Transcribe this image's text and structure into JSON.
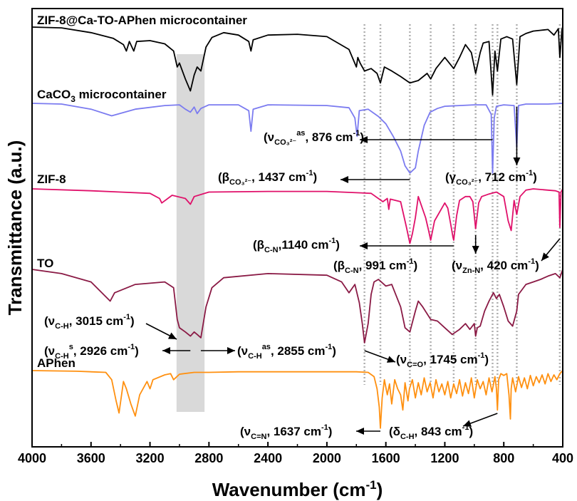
{
  "chart_data": {
    "type": "line",
    "xlabel": "Wavenumber (cm",
    "xlabel_sup": "-1",
    "xlabel_close": ")",
    "ylabel": "Transmittance (a.u.)",
    "xlim": [
      4000,
      400
    ],
    "x_reversed": true,
    "xticks": [
      4000,
      3600,
      3200,
      2800,
      2400,
      2000,
      1600,
      1200,
      800,
      400
    ],
    "grid": false,
    "shaded_band": [
      3020,
      2830
    ],
    "reference_lines": [
      1745,
      1637,
      1437,
      1296,
      1140,
      991,
      876,
      843,
      712,
      420
    ],
    "series": [
      {
        "name": "ZIF-8@Ca-TO-APhen microcontainer",
        "color": "#000000",
        "x": [
          4000,
          3800,
          3600,
          3450,
          3380,
          3360,
          3340,
          3310,
          3290,
          3200,
          3100,
          3040,
          3015,
          3000,
          2960,
          2926,
          2900,
          2880,
          2855,
          2820,
          2780,
          2700,
          2600,
          2530,
          2515,
          2500,
          2400,
          2200,
          2000,
          1850,
          1800,
          1790,
          1775,
          1745,
          1700,
          1660,
          1637,
          1610,
          1560,
          1500,
          1437,
          1380,
          1320,
          1296,
          1260,
          1200,
          1140,
          1100,
          1060,
          1020,
          991,
          960,
          940,
          900,
          876,
          860,
          843,
          820,
          780,
          740,
          712,
          690,
          650,
          600,
          550,
          500,
          460,
          430,
          420,
          405,
          400
        ],
        "y": [
          1.0,
          0.99,
          0.93,
          0.86,
          0.78,
          0.7,
          0.82,
          0.7,
          0.82,
          0.83,
          0.79,
          0.7,
          0.5,
          0.55,
          0.35,
          0.2,
          0.4,
          0.5,
          0.45,
          0.75,
          0.87,
          0.93,
          0.9,
          0.82,
          0.7,
          0.84,
          0.9,
          0.91,
          0.88,
          0.72,
          0.5,
          0.62,
          0.55,
          0.45,
          0.48,
          0.42,
          0.3,
          0.5,
          0.45,
          0.38,
          0.3,
          0.33,
          0.42,
          0.35,
          0.48,
          0.62,
          0.48,
          0.62,
          0.78,
          0.68,
          0.42,
          0.68,
          0.8,
          0.82,
          0.15,
          0.7,
          0.45,
          0.85,
          0.88,
          0.85,
          0.28,
          0.88,
          0.92,
          0.95,
          0.96,
          0.97,
          0.9,
          0.98,
          0.62,
          0.98,
          1.0
        ]
      },
      {
        "name": "CaCO3 microcontainer",
        "name_parts": [
          "CaCO",
          "3",
          " microcontainer"
        ],
        "color": "#7b7bf0",
        "x": [
          4000,
          3800,
          3600,
          3460,
          3300,
          3100,
          3000,
          2960,
          2926,
          2900,
          2880,
          2855,
          2800,
          2600,
          2530,
          2515,
          2500,
          2400,
          2000,
          1850,
          1810,
          1795,
          1780,
          1720,
          1650,
          1600,
          1550,
          1500,
          1470,
          1437,
          1400,
          1380,
          1340,
          1300,
          1250,
          1200,
          1100,
          1000,
          920,
          885,
          876,
          865,
          850,
          800,
          730,
          712,
          700,
          650,
          500,
          400
        ],
        "y": [
          1.0,
          0.99,
          0.92,
          0.83,
          0.92,
          0.97,
          0.98,
          0.92,
          0.88,
          0.95,
          0.86,
          0.93,
          0.98,
          0.98,
          0.9,
          0.62,
          0.92,
          0.98,
          0.97,
          0.94,
          0.8,
          0.55,
          0.9,
          0.92,
          0.82,
          0.72,
          0.55,
          0.35,
          0.15,
          0.05,
          0.12,
          0.35,
          0.7,
          0.88,
          0.93,
          0.96,
          0.97,
          0.98,
          0.98,
          0.85,
          0.05,
          0.8,
          0.96,
          0.98,
          0.97,
          0.4,
          0.97,
          0.99,
          0.99,
          1.0
        ]
      },
      {
        "name": "ZIF-8",
        "color": "#e0106a",
        "x": [
          4000,
          3600,
          3400,
          3200,
          3135,
          3120,
          3050,
          2960,
          2926,
          2900,
          2800,
          2400,
          2000,
          1700,
          1620,
          1590,
          1580,
          1570,
          1500,
          1460,
          1437,
          1420,
          1400,
          1380,
          1330,
          1310,
          1296,
          1270,
          1200,
          1180,
          1160,
          1145,
          1140,
          1120,
          1100,
          1060,
          1030,
          1010,
          991,
          970,
          950,
          900,
          850,
          800,
          770,
          750,
          730,
          712,
          690,
          650,
          600,
          500,
          450,
          425,
          420,
          412,
          400
        ],
        "y": [
          1.0,
          0.97,
          0.95,
          0.93,
          0.85,
          0.78,
          0.9,
          0.85,
          0.76,
          0.88,
          0.95,
          0.96,
          0.96,
          0.93,
          0.8,
          0.85,
          0.68,
          0.84,
          0.8,
          0.4,
          0.15,
          0.3,
          0.55,
          0.88,
          0.55,
          0.35,
          0.2,
          0.5,
          0.78,
          0.7,
          0.45,
          0.25,
          0.2,
          0.58,
          0.82,
          0.88,
          0.88,
          0.8,
          0.38,
          0.78,
          0.88,
          0.92,
          0.95,
          0.88,
          0.5,
          0.35,
          0.82,
          0.6,
          0.88,
          0.98,
          1.0,
          0.98,
          0.97,
          0.95,
          0.4,
          0.95,
          1.0
        ]
      },
      {
        "name": "TO",
        "color": "#8a1a45",
        "x": [
          4000,
          3800,
          3600,
          3470,
          3440,
          3300,
          3100,
          3040,
          3015,
          3000,
          2960,
          2926,
          2900,
          2880,
          2855,
          2820,
          2780,
          2700,
          2400,
          2000,
          1900,
          1850,
          1810,
          1780,
          1760,
          1745,
          1720,
          1700,
          1680,
          1650,
          1600,
          1560,
          1500,
          1470,
          1437,
          1400,
          1380,
          1350,
          1296,
          1250,
          1200,
          1150,
          1100,
          1060,
          1030,
          1000,
          991,
          980,
          960,
          930,
          900,
          870,
          850,
          830,
          800,
          770,
          740,
          712,
          700,
          650,
          600,
          550,
          500,
          450,
          420,
          400
        ],
        "y": [
          1.0,
          0.95,
          0.85,
          0.62,
          0.72,
          0.82,
          0.85,
          0.78,
          0.4,
          0.3,
          0.25,
          0.2,
          0.25,
          0.22,
          0.18,
          0.55,
          0.78,
          0.9,
          0.95,
          0.93,
          0.85,
          0.72,
          0.82,
          0.6,
          0.35,
          0.12,
          0.35,
          0.7,
          0.85,
          0.88,
          0.8,
          0.82,
          0.55,
          0.3,
          0.25,
          0.5,
          0.62,
          0.55,
          0.4,
          0.38,
          0.3,
          0.22,
          0.28,
          0.35,
          0.28,
          0.35,
          0.2,
          0.3,
          0.32,
          0.5,
          0.62,
          0.72,
          0.65,
          0.7,
          0.55,
          0.38,
          0.32,
          0.5,
          0.7,
          0.82,
          0.85,
          0.88,
          0.92,
          0.95,
          0.9,
          1.0
        ]
      },
      {
        "name": "APhen",
        "color": "#ff9010",
        "x": [
          4000,
          3700,
          3500,
          3460,
          3430,
          3410,
          3380,
          3360,
          3330,
          3300,
          3270,
          3220,
          3200,
          3180,
          3100,
          3060,
          3040,
          3000,
          2900,
          2800,
          2600,
          2400,
          2200,
          2000,
          1900,
          1800,
          1720,
          1680,
          1660,
          1645,
          1637,
          1625,
          1610,
          1590,
          1575,
          1560,
          1540,
          1520,
          1500,
          1485,
          1470,
          1450,
          1440,
          1420,
          1400,
          1380,
          1360,
          1340,
          1320,
          1300,
          1280,
          1260,
          1240,
          1220,
          1200,
          1180,
          1160,
          1140,
          1120,
          1100,
          1080,
          1060,
          1040,
          1020,
          1000,
          980,
          960,
          940,
          920,
          900,
          880,
          860,
          850,
          843,
          835,
          820,
          800,
          780,
          765,
          755,
          750,
          740,
          720,
          700,
          680,
          660,
          640,
          620,
          600,
          580,
          560,
          540,
          520,
          500,
          480,
          460,
          440,
          420,
          400
        ],
        "y": [
          1.0,
          0.99,
          0.97,
          0.85,
          0.5,
          0.3,
          0.82,
          0.7,
          0.45,
          0.25,
          0.6,
          0.82,
          0.7,
          0.85,
          0.93,
          0.95,
          0.85,
          0.94,
          0.97,
          0.97,
          0.98,
          0.98,
          0.98,
          0.98,
          0.98,
          0.98,
          0.97,
          0.9,
          0.7,
          0.4,
          0.05,
          0.55,
          0.85,
          0.6,
          0.78,
          0.45,
          0.85,
          0.7,
          0.6,
          0.35,
          0.8,
          0.5,
          0.7,
          0.85,
          0.55,
          0.8,
          0.6,
          0.88,
          0.65,
          0.8,
          0.55,
          0.85,
          0.65,
          0.78,
          0.6,
          0.82,
          0.55,
          0.78,
          0.62,
          0.85,
          0.58,
          0.8,
          0.62,
          0.88,
          0.55,
          0.85,
          0.7,
          0.82,
          0.6,
          0.88,
          0.65,
          0.9,
          0.7,
          0.35,
          0.85,
          0.95,
          0.92,
          0.95,
          0.6,
          0.2,
          0.7,
          0.88,
          0.65,
          0.9,
          0.72,
          0.88,
          0.7,
          0.92,
          0.75,
          0.9,
          0.8,
          0.93,
          0.78,
          0.95,
          0.82,
          0.93,
          0.85,
          0.95,
          1.0
        ]
      }
    ],
    "annotations": [
      {
        "id": "caco3-876",
        "parts": [
          [
            "n",
            "(ν"
          ],
          [
            "sub",
            "CO₃²⁻"
          ],
          [
            "sup",
            "as"
          ],
          [
            "n",
            ", 876 cm"
          ],
          [
            "sup",
            "-1"
          ],
          [
            "n",
            ")"
          ]
        ]
      },
      {
        "id": "caco3-1437",
        "parts": [
          [
            "n",
            "(β"
          ],
          [
            "sub",
            "CO₃²⁻"
          ],
          [
            "n",
            ", 1437 cm"
          ],
          [
            "sup",
            "-1"
          ],
          [
            "n",
            ")"
          ]
        ]
      },
      {
        "id": "caco3-712",
        "parts": [
          [
            "n",
            "(γ"
          ],
          [
            "sub",
            "CO₃²⁻"
          ],
          [
            "n",
            ", 712 cm"
          ],
          [
            "sup",
            "-1"
          ],
          [
            "n",
            ")"
          ]
        ]
      },
      {
        "id": "zif-1140",
        "parts": [
          [
            "n",
            "(β"
          ],
          [
            "sub",
            "C-N"
          ],
          [
            "n",
            ",1140 cm"
          ],
          [
            "sup",
            "-1"
          ],
          [
            "n",
            ")"
          ]
        ]
      },
      {
        "id": "zif-991",
        "parts": [
          [
            "n",
            "(β"
          ],
          [
            "sub",
            "C-N"
          ],
          [
            "n",
            ", 991 cm"
          ],
          [
            "sup",
            "-1"
          ],
          [
            "n",
            ")"
          ]
        ]
      },
      {
        "id": "zif-420",
        "parts": [
          [
            "n",
            "(ν"
          ],
          [
            "sub",
            "Zn-N"
          ],
          [
            "n",
            ", 420 cm"
          ],
          [
            "sup",
            "-1"
          ],
          [
            "n",
            ")"
          ]
        ]
      },
      {
        "id": "to-3015",
        "parts": [
          [
            "n",
            "(ν"
          ],
          [
            "sub",
            "C-H"
          ],
          [
            "n",
            ", 3015 cm"
          ],
          [
            "sup",
            "-1"
          ],
          [
            "n",
            ")"
          ]
        ]
      },
      {
        "id": "to-2926",
        "parts": [
          [
            "n",
            "(ν"
          ],
          [
            "sub",
            "C-H"
          ],
          [
            "sup",
            "s"
          ],
          [
            "n",
            ", 2926 cm"
          ],
          [
            "sup",
            "-1"
          ],
          [
            "n",
            ")"
          ]
        ]
      },
      {
        "id": "to-2855",
        "parts": [
          [
            "n",
            "(ν"
          ],
          [
            "sub",
            "C-H"
          ],
          [
            "sup",
            "as"
          ],
          [
            "n",
            ", 2855 cm"
          ],
          [
            "sup",
            "-1"
          ],
          [
            "n",
            ")"
          ]
        ]
      },
      {
        "id": "to-1745",
        "parts": [
          [
            "n",
            "(ν"
          ],
          [
            "sub",
            "C=O"
          ],
          [
            "n",
            ", 1745 cm"
          ],
          [
            "sup",
            "-1"
          ],
          [
            "n",
            ")"
          ]
        ]
      },
      {
        "id": "aphen-1637",
        "parts": [
          [
            "n",
            "(ν"
          ],
          [
            "sub",
            "C=N"
          ],
          [
            "n",
            ", 1637 cm"
          ],
          [
            "sup",
            "-1"
          ],
          [
            "n",
            ")"
          ]
        ]
      },
      {
        "id": "aphen-843",
        "parts": [
          [
            "n",
            "(δ"
          ],
          [
            "sub",
            "C-H"
          ],
          [
            "n",
            ", 843 cm"
          ],
          [
            "sup",
            "-1"
          ],
          [
            "n",
            ")"
          ]
        ]
      }
    ]
  }
}
